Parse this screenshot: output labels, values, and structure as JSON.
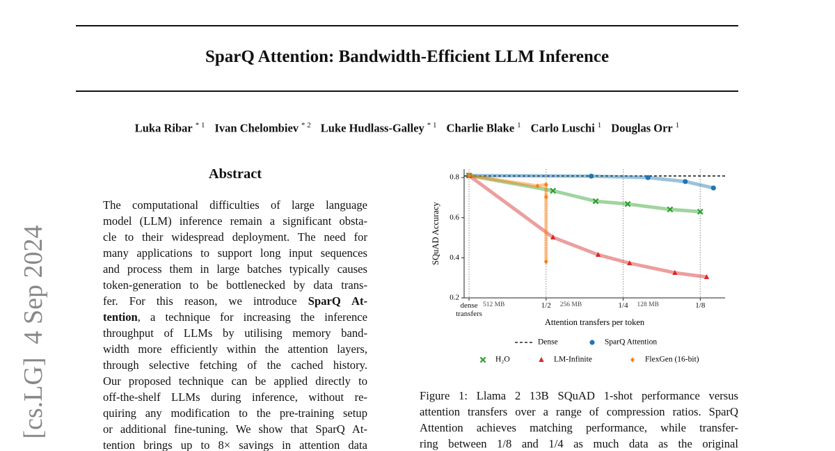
{
  "side_label": "[cs.LG]  4 Sep 2024",
  "header": {
    "title": "SparQ Attention: Bandwidth-Efficient LLM Inference",
    "authors": [
      {
        "name": "Luka Ribar",
        "marks": "* 1"
      },
      {
        "name": "Ivan Chelombiev",
        "marks": "* 2"
      },
      {
        "name": "Luke Hudlass-Galley",
        "marks": "* 1"
      },
      {
        "name": "Charlie Blake",
        "marks": "1"
      },
      {
        "name": "Carlo Luschi",
        "marks": "1"
      },
      {
        "name": "Douglas Orr",
        "marks": "1"
      }
    ]
  },
  "abstract": {
    "heading": "Abstract",
    "lines": [
      [
        "The computational difficulties of large language"
      ],
      [
        "model (LLM) inference remain a significant obsta-"
      ],
      [
        "cle to their widespread deployment. The need for"
      ],
      [
        "many applications to support long input sequences"
      ],
      [
        "and process them in large batches typically causes"
      ],
      [
        "token-generation to be bottlenecked by data trans-"
      ],
      [
        "fer.  For this reason, we introduce ",
        {
          "text": "SparQ At-",
          "bold": true
        }
      ],
      [
        {
          "text": "tention",
          "bold": true
        },
        ", a technique for increasing the inference"
      ],
      [
        "throughput of LLMs by utilising memory band-"
      ],
      [
        "width more efficiently within the attention layers,"
      ],
      [
        "through selective fetching of the cached history."
      ],
      [
        "Our proposed technique can be applied directly to"
      ],
      [
        "off-the-shelf LLMs during inference, without re-"
      ],
      [
        "quiring any modification to the pre-training setup"
      ],
      [
        "or additional fine-tuning. We show that SparQ At-"
      ],
      [
        "tention brings up to 8× savings in attention data"
      ]
    ]
  },
  "figure": {
    "caption_lines": [
      "Figure 1: Llama 2 13B SQuAD 1-shot performance versus",
      "attention transfers over a range of compression ratios. SparQ",
      "Attention achieves matching performance, while transfer-",
      "ring between 1/8 and 1/4 as much data as the original"
    ]
  },
  "chart_data": {
    "type": "line",
    "x_label": "Attention transfers per token",
    "y_label": "SQuAD Accuracy",
    "x_scale": "log",
    "xlim": [
      1.045,
      0.1
    ],
    "xticks": [
      {
        "value": 1,
        "label": "dense transfers"
      },
      {
        "value": 0.5,
        "label": "1/2"
      },
      {
        "value": 0.25,
        "label": "1/4"
      },
      {
        "value": 0.125,
        "label": "1/8"
      }
    ],
    "memory_labels": [
      {
        "value": 0.8,
        "label": "512 MB"
      },
      {
        "value": 0.4,
        "label": "256 MB"
      },
      {
        "value": 0.2,
        "label": "128 MB"
      }
    ],
    "ylim": [
      0.2,
      0.842
    ],
    "yticks": [
      0.2,
      0.4,
      0.6,
      0.8
    ],
    "grid": "x-dotted",
    "legend": "below",
    "series": [
      {
        "name": "Dense",
        "color": "#222222",
        "marker": "none",
        "linestyle": "dashed",
        "x": [
          1.045,
          0.1
        ],
        "values": [
          0.808,
          0.808
        ]
      },
      {
        "name": "SparQ Attention",
        "color": "#1f77b4",
        "marker": "circle",
        "linestyle": "solid",
        "x": [
          1,
          0.333,
          0.2,
          0.143,
          0.111
        ],
        "values": [
          0.81,
          0.807,
          0.8,
          0.78,
          0.748
        ]
      },
      {
        "name": "H₂O",
        "color": "#2ca02c",
        "marker": "x",
        "linestyle": "solid",
        "x": [
          1,
          0.47,
          0.32,
          0.24,
          0.164,
          0.125
        ],
        "values": [
          0.81,
          0.734,
          0.682,
          0.668,
          0.641,
          0.63
        ]
      },
      {
        "name": "LM-Infinite",
        "color": "#d62728",
        "marker": "triangle",
        "linestyle": "solid",
        "x": [
          1,
          0.47,
          0.313,
          0.236,
          0.157,
          0.118
        ],
        "values": [
          0.81,
          0.502,
          0.415,
          0.373,
          0.325,
          0.304
        ]
      },
      {
        "name": "FlexGen (16-bit)",
        "color": "#ff7f0e",
        "marker": "diamond",
        "linestyle": "solid",
        "x": [
          1,
          0.54,
          0.5,
          0.5,
          0.5
        ],
        "values": [
          0.81,
          0.758,
          0.765,
          0.703,
          0.38
        ]
      }
    ]
  }
}
